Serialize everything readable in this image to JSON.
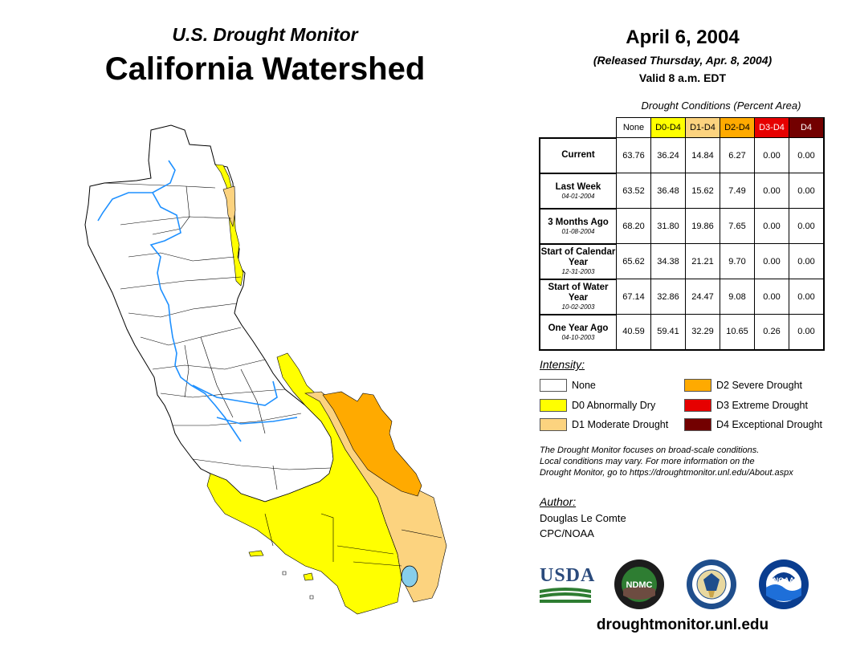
{
  "header": {
    "subtitle": "U.S. Drought Monitor",
    "title": "California Watershed"
  },
  "date_block": {
    "date": "April 6, 2004",
    "released": "(Released Thursday, Apr. 8, 2004)",
    "valid": "Valid 8 a.m. EDT"
  },
  "table": {
    "title": "Drought Conditions (Percent Area)",
    "columns": [
      {
        "label": "None",
        "bg": "#ffffff",
        "fg": "#000000"
      },
      {
        "label": "D0-D4",
        "bg": "#ffff00",
        "fg": "#000000"
      },
      {
        "label": "D1-D4",
        "bg": "#fcd37f",
        "fg": "#000000"
      },
      {
        "label": "D2-D4",
        "bg": "#ffaa00",
        "fg": "#000000"
      },
      {
        "label": "D3-D4",
        "bg": "#e60000",
        "fg": "#ffffff"
      },
      {
        "label": "D4",
        "bg": "#730000",
        "fg": "#ffffff"
      }
    ],
    "rows": [
      {
        "label": "Current",
        "date": "",
        "values": [
          "63.76",
          "36.24",
          "14.84",
          "6.27",
          "0.00",
          "0.00"
        ]
      },
      {
        "label": "Last Week",
        "date": "04-01-2004",
        "values": [
          "63.52",
          "36.48",
          "15.62",
          "7.49",
          "0.00",
          "0.00"
        ]
      },
      {
        "label": "3 Months Ago",
        "date": "01-08-2004",
        "values": [
          "68.20",
          "31.80",
          "19.86",
          "7.65",
          "0.00",
          "0.00"
        ]
      },
      {
        "label": "Start of Calendar Year",
        "date": "12-31-2003",
        "values": [
          "65.62",
          "34.38",
          "21.21",
          "9.70",
          "0.00",
          "0.00"
        ]
      },
      {
        "label": "Start of Water Year",
        "date": "10-02-2003",
        "values": [
          "67.14",
          "32.86",
          "24.47",
          "9.08",
          "0.00",
          "0.00"
        ]
      },
      {
        "label": "One Year Ago",
        "date": "04-10-2003",
        "values": [
          "40.59",
          "59.41",
          "32.29",
          "10.65",
          "0.26",
          "0.00"
        ]
      }
    ]
  },
  "intensity": {
    "title": "Intensity:",
    "items": [
      {
        "label": "None",
        "color": "#ffffff"
      },
      {
        "label": "D0 Abnormally Dry",
        "color": "#ffff00"
      },
      {
        "label": "D1 Moderate Drought",
        "color": "#fcd37f"
      },
      {
        "label": "D2 Severe Drought",
        "color": "#ffaa00"
      },
      {
        "label": "D3 Extreme Drought",
        "color": "#e60000"
      },
      {
        "label": "D4 Exceptional Drought",
        "color": "#730000"
      }
    ]
  },
  "note": {
    "line1": "The Drought Monitor focuses on broad-scale conditions.",
    "line2": "Local conditions may vary. For more information on the",
    "line3": "Drought Monitor, go to https://droughtmonitor.unl.edu/About.aspx"
  },
  "author": {
    "title": "Author:",
    "name": "Douglas Le Comte",
    "org": "CPC/NOAA"
  },
  "logos": {
    "usda": "USDA",
    "ndmc": "NDMC",
    "noaa": "NOAA"
  },
  "footer": {
    "url": "droughtmonitor.unl.edu"
  },
  "map": {
    "region": "California",
    "colors": {
      "none": "#ffffff",
      "d0": "#ffff00",
      "d1": "#fcd37f",
      "d2": "#ffaa00",
      "water": "#1e90ff",
      "lake": "#87ceeb"
    }
  }
}
